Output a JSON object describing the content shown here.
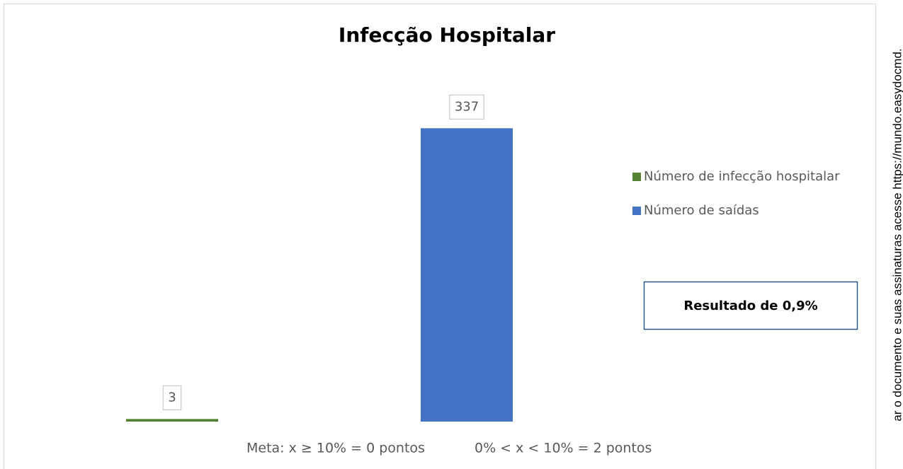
{
  "chart_data": {
    "type": "bar",
    "title": "Infecção Hospitalar",
    "categories": [
      null
    ],
    "series": [
      {
        "name": "Número de infecção hospitalar",
        "color": "#548235",
        "values": [
          3
        ]
      },
      {
        "name": "Número de saídas",
        "color": "#4472c4",
        "values": [
          337
        ]
      }
    ],
    "ylim": [
      0,
      360
    ],
    "legend": "right",
    "annotations": [
      "Resultado de 0,9%",
      "Meta: x ≥ 10% = 0 pontos",
      "0% < x < 10% = 2 pontos"
    ],
    "watermark": "ar o documento e suas assinaturas acesse https://mundo.easydocmd."
  }
}
